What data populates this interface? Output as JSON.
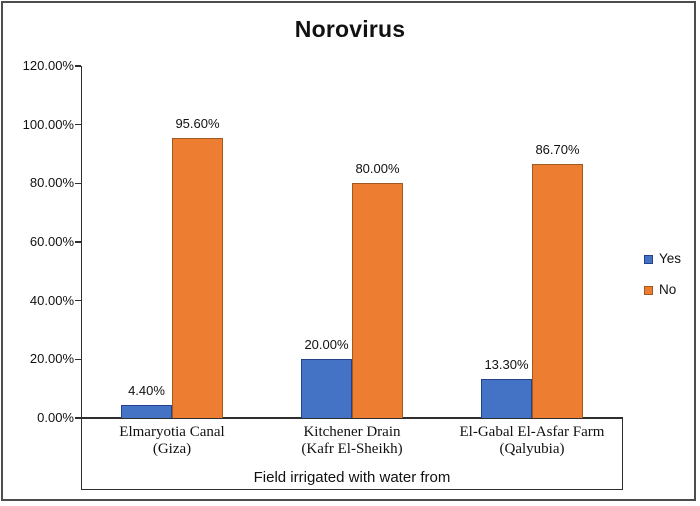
{
  "chart_data": {
    "type": "bar",
    "title": "Norovirus",
    "categories": [
      "Elmaryotia Canal\n(Giza)",
      "Kitchener Drain\n(Kafr El-Sheikh)",
      "El-Gabal El-Asfar Farm\n(Qalyubia)"
    ],
    "series": [
      {
        "name": "Yes",
        "fill_color": "#4472C4",
        "border_color": "#24418C",
        "values": [
          4.4,
          20.0,
          13.3
        ],
        "labels": [
          "4.40%",
          "20.00%",
          "13.30%"
        ]
      },
      {
        "name": "No",
        "fill_color": "#ED7D31",
        "border_color": "#9E5B21",
        "values": [
          95.6,
          80.0,
          86.7
        ],
        "labels": [
          "95.60%",
          "80.00%",
          "86.70%"
        ]
      }
    ],
    "xlabel": "Field irrigated with water from",
    "ylabel": "",
    "ylim": [
      0,
      120
    ],
    "yticks": {
      "values": [
        0,
        20,
        40,
        60,
        80,
        100,
        120
      ],
      "labels": [
        "0.00%",
        "20.00%",
        "40.00%",
        "60.00%",
        "80.00%",
        "100.00%",
        "120.00%"
      ]
    },
    "grid": false,
    "legend_position": "right",
    "frame_color": "#4d4d4d"
  }
}
